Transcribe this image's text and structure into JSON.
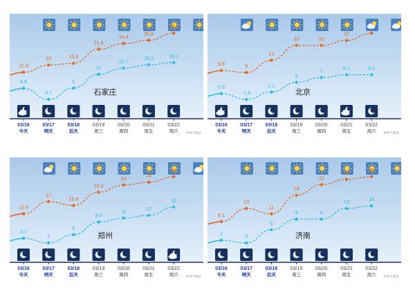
{
  "colors": {
    "bg_top": "#a9c9ea",
    "bg_bottom": "#e6f1fb",
    "high_line": "#e06a1e",
    "low_line": "#2bbbe6",
    "icon_bg_day": "#4a7fc0",
    "icon_bg_night": "#16315e",
    "date_text": "#1a3aa0",
    "week_text": "#444444",
    "city_text": "#222222",
    "axis": "#1f2f5e"
  },
  "source_label": "中央气象台",
  "top_mark": "",
  "chart_data": [
    {
      "type": "line",
      "city": "石家庄",
      "dates": [
        "03/16",
        "03/17",
        "03/18",
        "03/19",
        "03/20",
        "03/21",
        "03/22"
      ],
      "weekdays": [
        "今天",
        "明天",
        "后天",
        "周三",
        "周四",
        "周五",
        "周六"
      ],
      "day_icons": [
        "sunny-icon",
        "sunny-icon",
        "sunny-icon",
        "sunny-icon",
        "sunny-icon",
        "sunny-icon",
        "sunny-icon"
      ],
      "night_icons": [
        "cloudy-night-icon",
        "clear-night-icon",
        "clear-night-icon",
        "clear-night-icon",
        "clear-night-icon",
        "clear-night-icon",
        "clear-night-icon"
      ],
      "series": [
        {
          "name": "high",
          "values": [
            11.9,
            15,
            15.8,
            21.9,
            24.4,
            25.8,
            28.9
          ],
          "labels": [
            "11.9",
            "15",
            "15.8",
            "21.9",
            "24.4",
            "25.8",
            "28.9"
          ]
        },
        {
          "name": "low",
          "values": [
            4.9,
            0.1,
            5,
            11,
            13.7,
            15.1,
            16.1
          ],
          "labels": [
            "4.9",
            "0.1",
            "5",
            "11",
            "13.7",
            "15.1",
            "16.1"
          ]
        }
      ]
    },
    {
      "type": "line",
      "city": "北京",
      "dates": [
        "03/16",
        "03/17",
        "03/18",
        "03/19",
        "03/20",
        "03/21",
        "03/22"
      ],
      "weekdays": [
        "今天",
        "明天",
        "后天",
        "周三",
        "周四",
        "周五",
        "周六"
      ],
      "day_icons": [
        "partly-cloudy-icon",
        "sunny-icon",
        "sunny-icon",
        "sunny-icon",
        "sunny-icon",
        "partly-cloudy-icon",
        "partly-cloudy-icon"
      ],
      "night_icons": [
        "cloudy-night-icon",
        "clear-night-icon",
        "clear-night-icon",
        "clear-night-icon",
        "clear-night-icon",
        "cloudy-night-icon",
        "clear-night-icon"
      ],
      "series": [
        {
          "name": "high",
          "values": [
            9.8,
            9,
            14,
            20,
            20,
            22,
            25
          ],
          "labels": [
            "9.8",
            "9",
            "14",
            "20",
            "20",
            "22",
            ""
          ]
        },
        {
          "name": "low",
          "values": [
            0.5,
            -1.9,
            1.1,
            5,
            7,
            8.1,
            8.1
          ],
          "labels": [
            "0.5",
            "-1.9",
            "1.1",
            "5",
            "7",
            "8.1",
            "8.1"
          ]
        }
      ]
    },
    {
      "type": "line",
      "city": "郑州",
      "dates": [
        "03/16",
        "03/17",
        "03/18",
        "03/19",
        "03/20",
        "03/21",
        "03/22"
      ],
      "weekdays": [
        "今天",
        "明天",
        "后天",
        "周三",
        "周四",
        "周五",
        "周六"
      ],
      "day_icons": [
        "partly-cloudy-icon",
        "sunny-icon",
        "sunny-icon",
        "sunny-icon",
        "sunny-icon",
        "sunny-icon",
        "partly-cloudy-icon"
      ],
      "night_icons": [
        "clear-night-icon",
        "clear-night-icon",
        "clear-night-icon",
        "clear-night-icon",
        "clear-night-icon",
        "clear-night-icon",
        "cloudy-night-icon"
      ],
      "series": [
        {
          "name": "high",
          "values": [
            12.6,
            17,
            15.6,
            20.4,
            23,
            24,
            26
          ],
          "labels": [
            "12.6",
            "17",
            "15.6",
            "20.4",
            "23",
            "24",
            "26"
          ]
        },
        {
          "name": "low",
          "values": [
            3.7,
            2,
            5,
            9.6,
            11,
            12,
            15
          ],
          "labels": [
            "3.7",
            "2",
            "5",
            "9.6",
            "11",
            "12",
            "15"
          ]
        }
      ]
    },
    {
      "type": "line",
      "city": "济南",
      "dates": [
        "03/16",
        "03/17",
        "03/18",
        "03/19",
        "03/20",
        "03/21",
        "03/22"
      ],
      "weekdays": [
        "今天",
        "明天",
        "后天",
        "周三",
        "周四",
        "周五",
        "周六"
      ],
      "day_icons": [
        "sunny-icon",
        "sunny-icon",
        "sunny-icon",
        "sunny-icon",
        "sunny-icon",
        "sunny-icon",
        "sunny-icon"
      ],
      "night_icons": [
        "clear-night-icon",
        "clear-night-icon",
        "clear-night-icon",
        "clear-night-icon",
        "clear-night-icon",
        "clear-night-icon",
        "clear-night-icon"
      ],
      "series": [
        {
          "name": "high",
          "values": [
            8.1,
            13,
            11,
            18,
            22,
            24,
            25
          ],
          "labels": [
            "8.1",
            "13",
            "11",
            "18",
            "22",
            "24",
            "25"
          ]
        },
        {
          "name": "low",
          "values": [
            1,
            0,
            5,
            9,
            9,
            13,
            14
          ],
          "labels": [
            "1",
            "0",
            "5",
            "9",
            "9",
            "13",
            "14"
          ]
        }
      ]
    }
  ]
}
